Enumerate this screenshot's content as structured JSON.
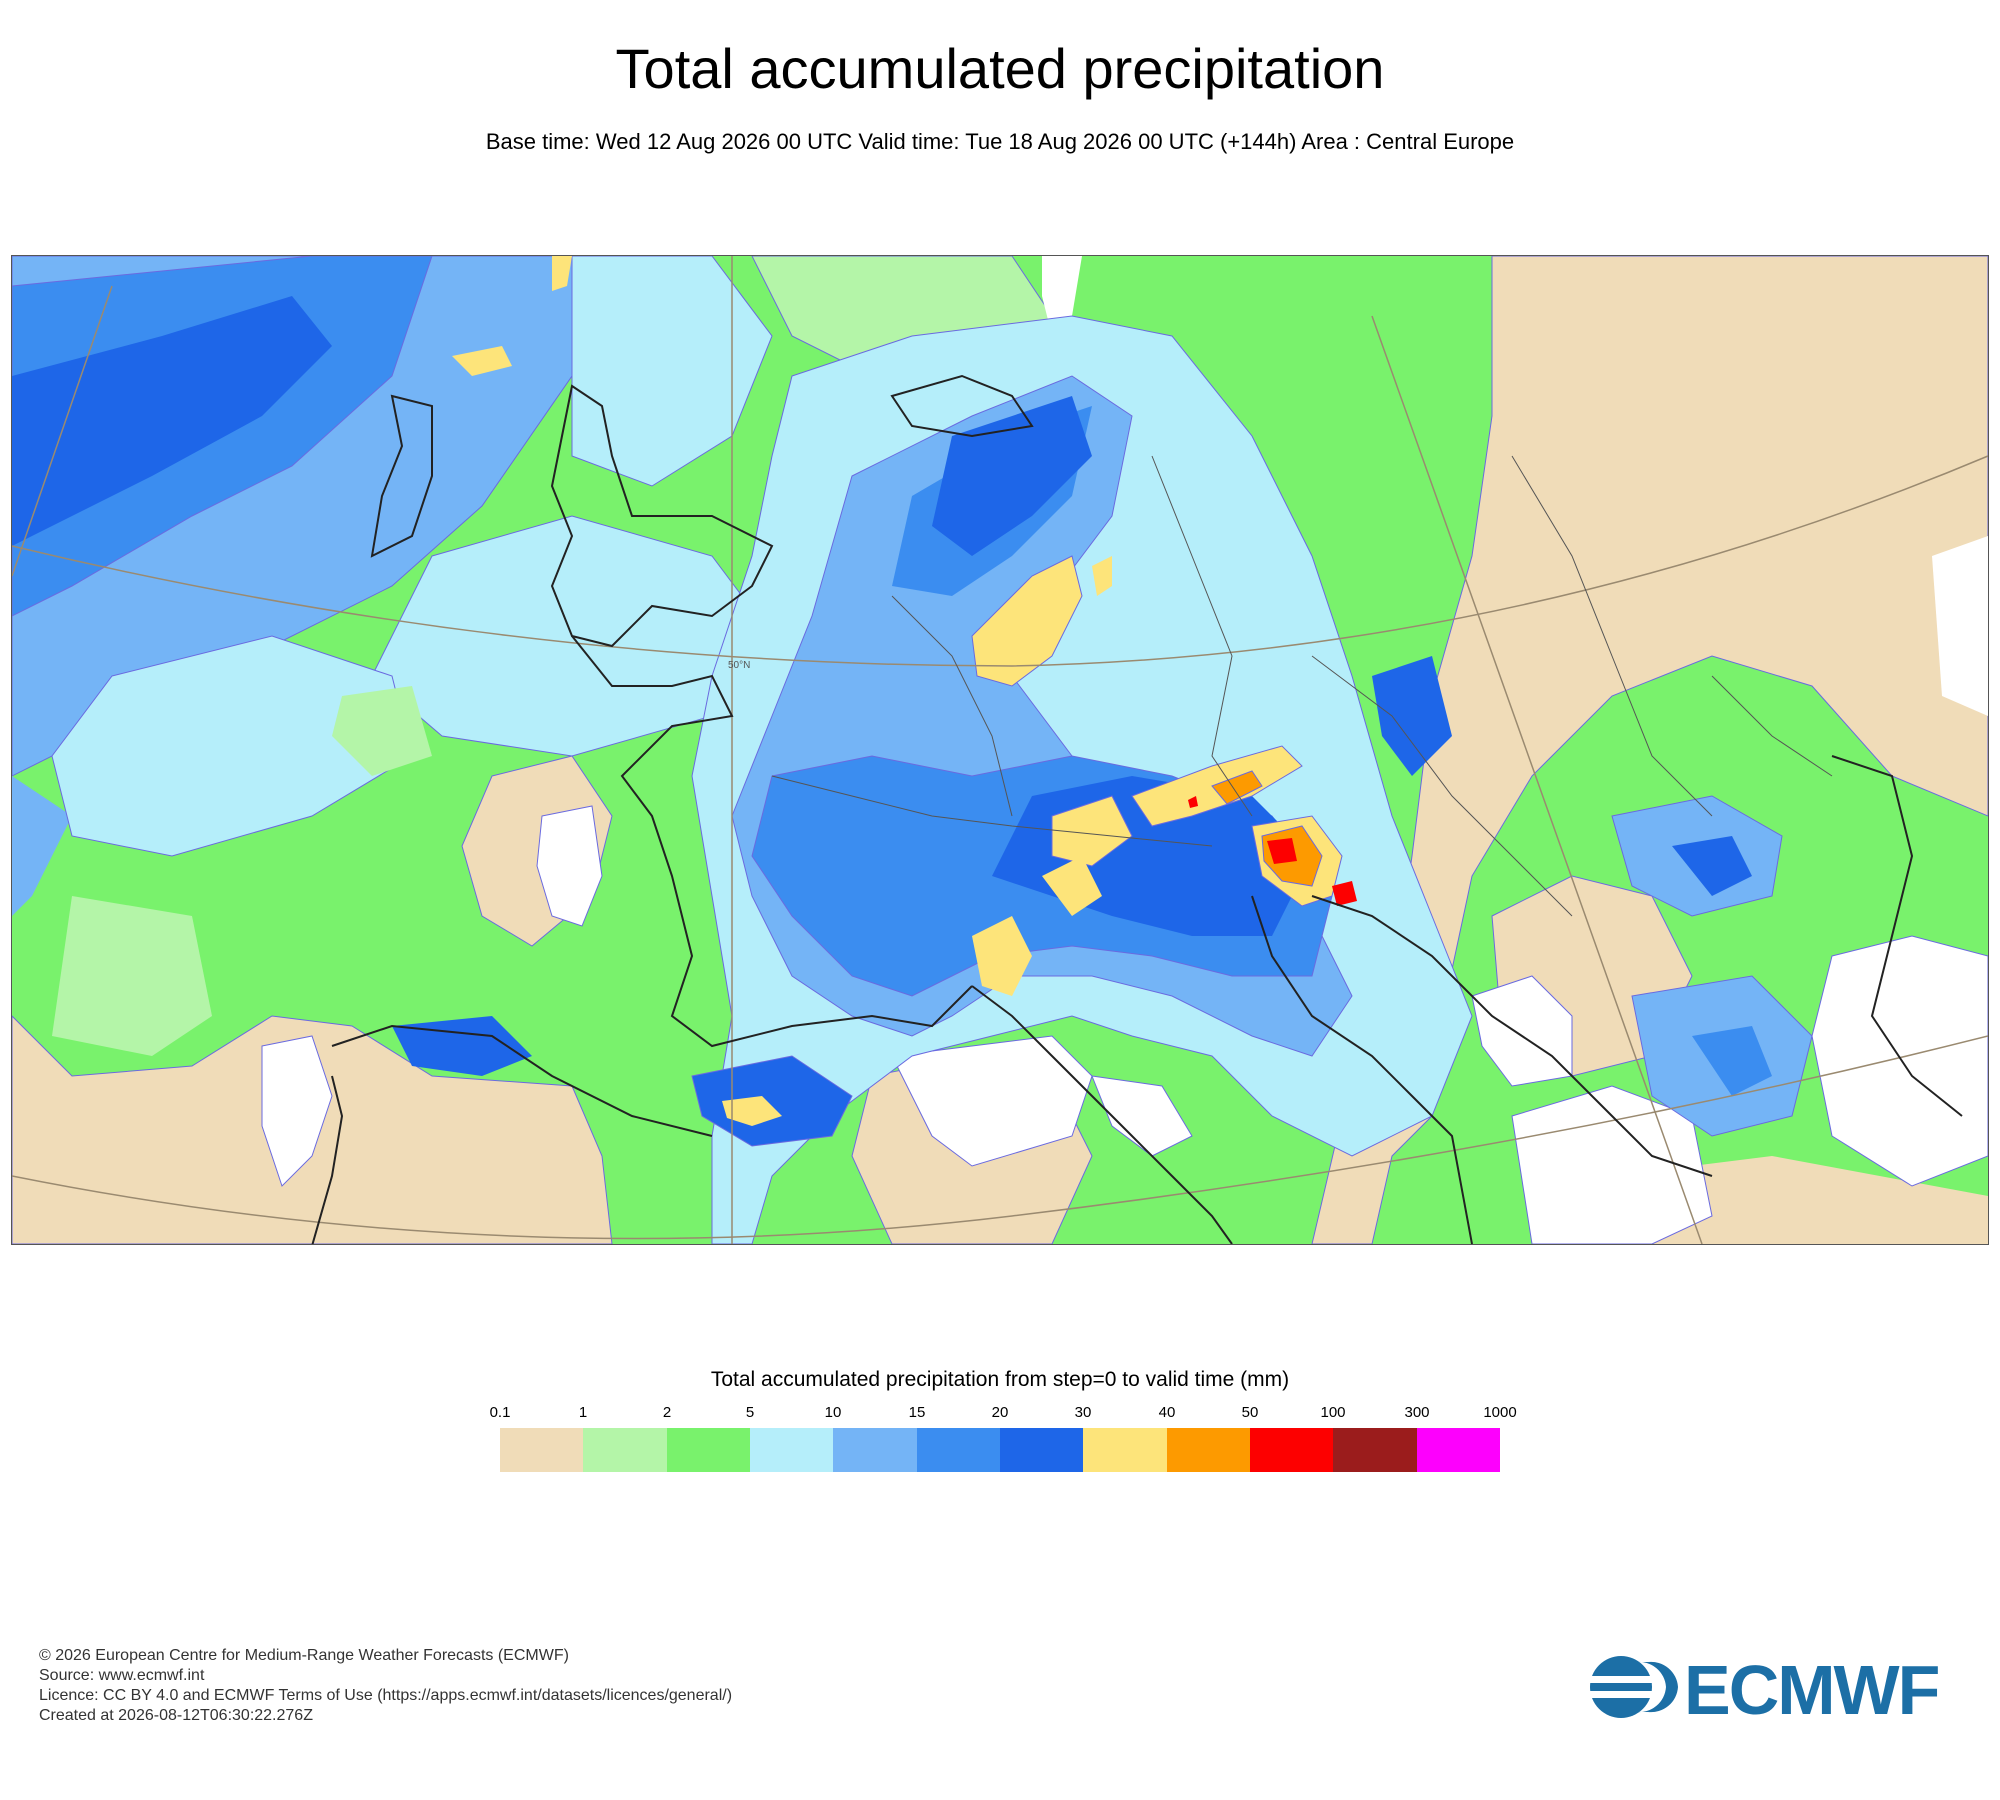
{
  "header": {
    "title": "Total accumulated precipitation",
    "subtitle": "Base time: Wed 12 Aug 2026 00 UTC Valid time: Tue 18 Aug 2026 00 UTC (+144h) Area : Central Europe"
  },
  "map": {
    "lat_label": "50°N"
  },
  "legend": {
    "title": "Total accumulated precipitation from step=0 to valid time (mm)",
    "ticks": [
      "0.1",
      "1",
      "2",
      "5",
      "10",
      "15",
      "20",
      "30",
      "40",
      "50",
      "100",
      "300",
      "1000"
    ],
    "colors": [
      "#f0dcb8",
      "#b4f5a8",
      "#79f26c",
      "#b5eefa",
      "#74b4f6",
      "#3b8df0",
      "#1e66e8",
      "#fde47a",
      "#fd9a00",
      "#fd0000",
      "#9b1c1c",
      "#fd00fd"
    ]
  },
  "footer": {
    "line1": "© 2026 European Centre for Medium-Range Weather Forecasts (ECMWF)",
    "line2": "Source: www.ecmwf.int",
    "line3": "Licence: CC BY 4.0 and ECMWF Terms of Use (https://apps.ecmwf.int/datasets/licences/general/)",
    "line4": "Created at 2026-08-12T06:30:22.276Z"
  },
  "logo": {
    "text": "ECMWF",
    "color": "#1c6fa6"
  }
}
